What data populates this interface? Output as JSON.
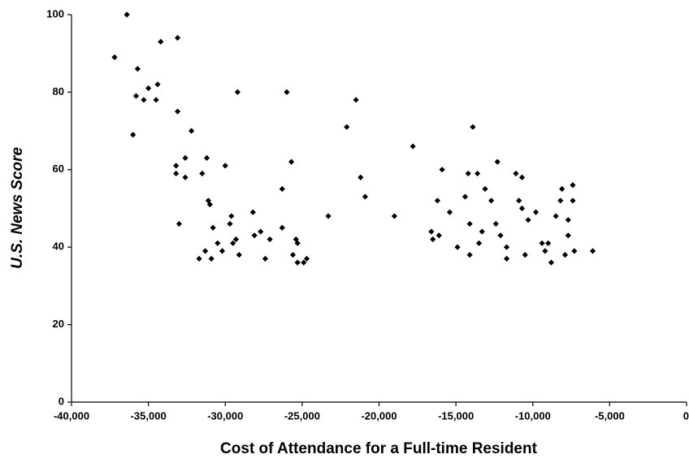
{
  "chart_data": {
    "type": "scatter",
    "x_label": "Cost of Attendance for a Full-time Resident",
    "y_label": "U.S. News Score",
    "color": "#000000",
    "x": [
      -37200,
      -36400,
      -35700,
      -35800,
      -36000,
      -35300,
      -35000,
      -34500,
      -34400,
      -34200,
      -33100,
      -33100,
      -33200,
      -33200,
      -33000,
      -32600,
      -32600,
      -32200,
      -31500,
      -31700,
      -31200,
      -31100,
      -31000,
      -30800,
      -30900,
      -31300,
      -30500,
      -30200,
      -30000,
      -29700,
      -29600,
      -29500,
      -29300,
      -29100,
      -29200,
      -28200,
      -28100,
      -27700,
      -27400,
      -27100,
      -26300,
      -26300,
      -26000,
      -25700,
      -25600,
      -25400,
      -25300,
      -25300,
      -24900,
      -24700,
      -23300,
      -22100,
      -21500,
      -21200,
      -20900,
      -19000,
      -17800,
      -16600,
      -16500,
      -16200,
      -16100,
      -15900,
      -15400,
      -14900,
      -14400,
      -14200,
      -14100,
      -14100,
      -13900,
      -13600,
      -13500,
      -13300,
      -13100,
      -12700,
      -12400,
      -12300,
      -12100,
      -11700,
      -11700,
      -11100,
      -10900,
      -10700,
      -10700,
      -10500,
      -10300,
      -9800,
      -9400,
      -9200,
      -9000,
      -8800,
      -8500,
      -8200,
      -8100,
      -7900,
      -7700,
      -7700,
      -7400,
      -7400,
      -7300,
      -6100
    ],
    "values": [
      89,
      100,
      86,
      79,
      69,
      78,
      81,
      78,
      82,
      93,
      94,
      75,
      61,
      59,
      46,
      63,
      58,
      70,
      59,
      37,
      63,
      52,
      51,
      45,
      37,
      39,
      41,
      39,
      61,
      46,
      48,
      41,
      42,
      38,
      80,
      49,
      43,
      44,
      37,
      42,
      55,
      45,
      80,
      62,
      38,
      42,
      41,
      36,
      36,
      37,
      48,
      71,
      78,
      58,
      53,
      48,
      66,
      44,
      42,
      52,
      43,
      60,
      49,
      40,
      53,
      59,
      46,
      38,
      71,
      59,
      41,
      44,
      55,
      52,
      46,
      62,
      43,
      40,
      37,
      59,
      52,
      50,
      58,
      38,
      47,
      49,
      41,
      39,
      41,
      36,
      48,
      52,
      55,
      38,
      47,
      43,
      52,
      56,
      39,
      39
    ],
    "xlim": [
      -40000,
      0
    ],
    "ylim": [
      0,
      100
    ],
    "xticks": [
      {
        "value": -40000,
        "label": "-40,000"
      },
      {
        "value": -35000,
        "label": "-35,000"
      },
      {
        "value": -30000,
        "label": "-30,000"
      },
      {
        "value": -25000,
        "label": "-25,000"
      },
      {
        "value": -20000,
        "label": "-20,000"
      },
      {
        "value": -15000,
        "label": "-15,000"
      },
      {
        "value": -10000,
        "label": "-10,000"
      },
      {
        "value": -5000,
        "label": "-5,000"
      },
      0
    ],
    "yticks": [
      0,
      20,
      40,
      60,
      80,
      100
    ],
    "grid": false
  }
}
